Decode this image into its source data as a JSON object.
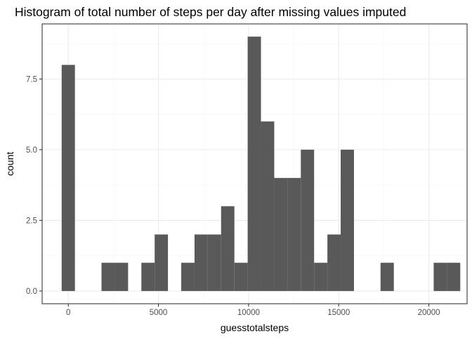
{
  "chart_data": {
    "type": "bar",
    "title": "Histogram of total number of steps per day after missing values imputed",
    "xlabel": "guesstotalsteps",
    "ylabel": "count",
    "bin_width": 736.9,
    "bins": [
      {
        "start": -368,
        "count": 8
      },
      {
        "start": 369,
        "count": 0
      },
      {
        "start": 1106,
        "count": 0
      },
      {
        "start": 1843,
        "count": 1
      },
      {
        "start": 2580,
        "count": 1
      },
      {
        "start": 3317,
        "count": 0
      },
      {
        "start": 4054,
        "count": 1
      },
      {
        "start": 4791,
        "count": 2
      },
      {
        "start": 5528,
        "count": 0
      },
      {
        "start": 6265,
        "count": 1
      },
      {
        "start": 7002,
        "count": 2
      },
      {
        "start": 7739,
        "count": 2
      },
      {
        "start": 8476,
        "count": 3
      },
      {
        "start": 9213,
        "count": 1
      },
      {
        "start": 9950,
        "count": 9
      },
      {
        "start": 10687,
        "count": 6
      },
      {
        "start": 11424,
        "count": 4
      },
      {
        "start": 12161,
        "count": 4
      },
      {
        "start": 12898,
        "count": 5
      },
      {
        "start": 13635,
        "count": 1
      },
      {
        "start": 14372,
        "count": 2
      },
      {
        "start": 15109,
        "count": 5
      },
      {
        "start": 15846,
        "count": 0
      },
      {
        "start": 16583,
        "count": 0
      },
      {
        "start": 17320,
        "count": 1
      },
      {
        "start": 18057,
        "count": 0
      },
      {
        "start": 18794,
        "count": 0
      },
      {
        "start": 19531,
        "count": 0
      },
      {
        "start": 20268,
        "count": 1
      },
      {
        "start": 21005,
        "count": 1
      }
    ],
    "xlim": [
      -1450,
      22120
    ],
    "ylim": [
      -0.45,
      9.45
    ],
    "x_ticks": [
      0,
      5000,
      10000,
      15000,
      20000
    ],
    "x_tick_labels": [
      "0",
      "5000",
      "10000",
      "15000",
      "20000"
    ],
    "y_ticks": [
      0,
      2.5,
      5,
      7.5
    ],
    "y_tick_labels": [
      "0.0",
      "2.5",
      "5.0",
      "7.5"
    ],
    "grid": true,
    "legend": "none",
    "colors": {
      "bar_fill": "#595959",
      "grid_major": "#ebebeb",
      "grid_minor": "#f5f5f5",
      "panel_border": "#333333",
      "tick_text": "#4d4d4d"
    }
  }
}
